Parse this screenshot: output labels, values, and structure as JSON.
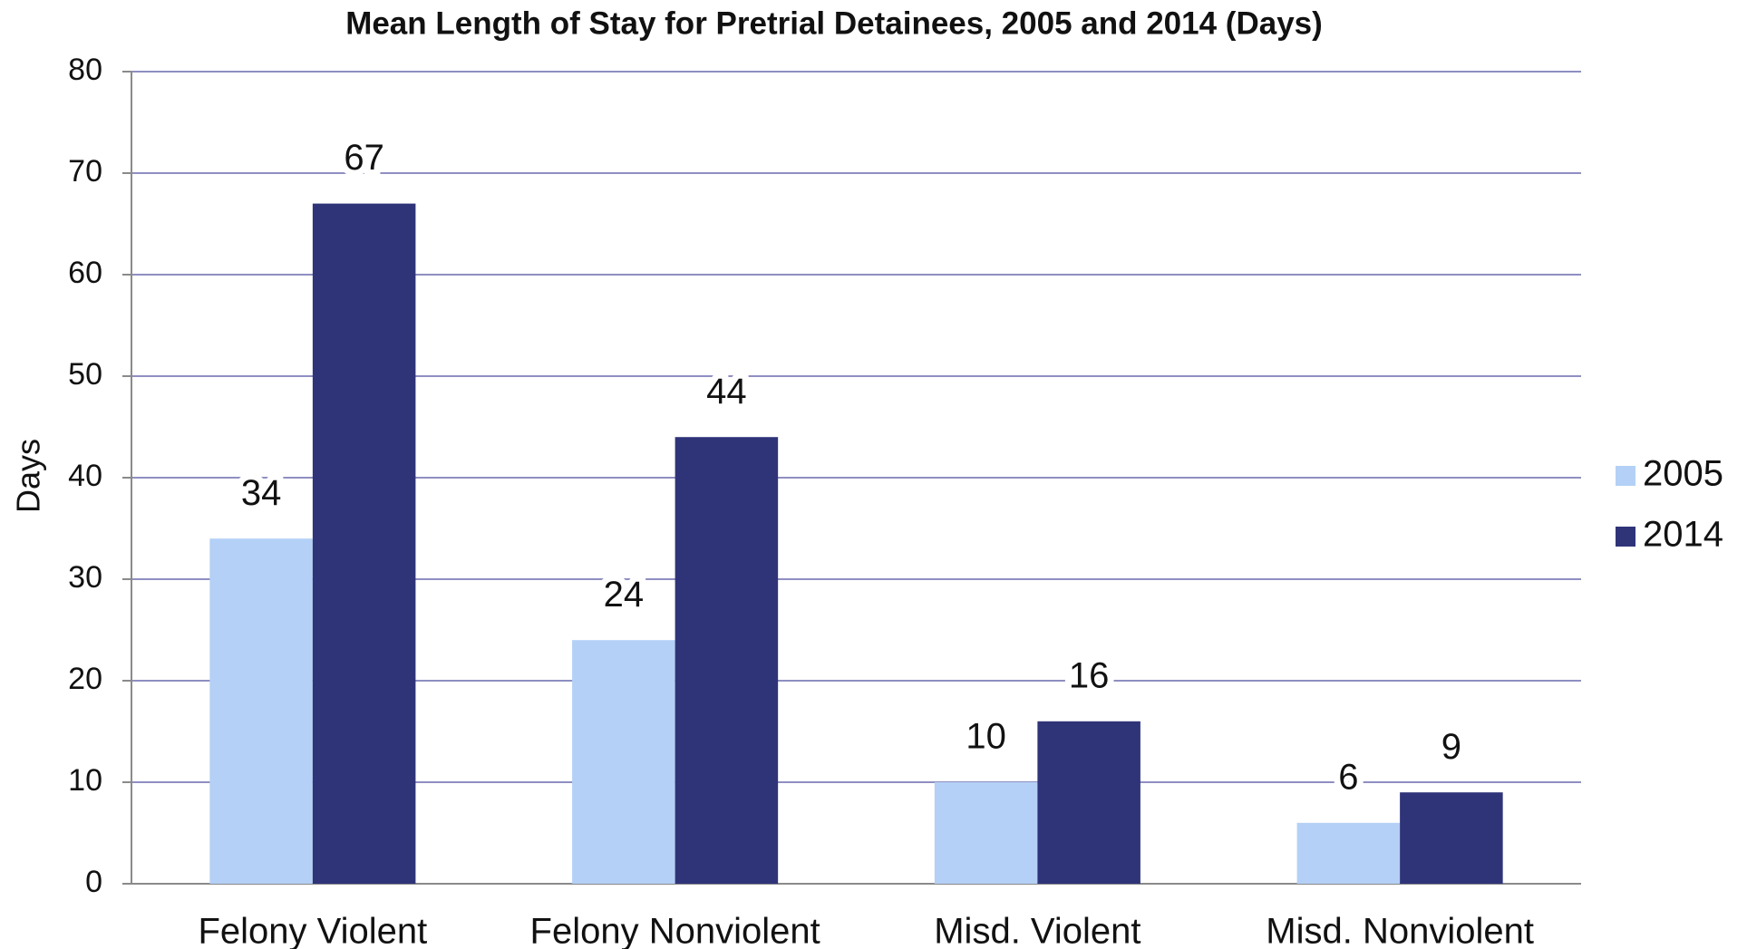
{
  "chart_data": {
    "type": "bar",
    "title": "Mean Length of Stay for Pretrial Detainees, 2005 and 2014 (Days)",
    "y_label": "Days",
    "categories": [
      "Felony Violent",
      "Felony Nonviolent",
      "Misd. Violent",
      "Misd. Nonviolent"
    ],
    "series": [
      {
        "name": "2005",
        "color": "#b4d0f6",
        "values": [
          34,
          24,
          10,
          6
        ]
      },
      {
        "name": "2014",
        "color": "#2f3479",
        "values": [
          67,
          44,
          16,
          9
        ]
      }
    ],
    "ylim": [
      0,
      80
    ],
    "yticks": [
      0,
      10,
      20,
      30,
      40,
      50,
      60,
      70,
      80
    ],
    "grid": true,
    "legend": "right"
  }
}
